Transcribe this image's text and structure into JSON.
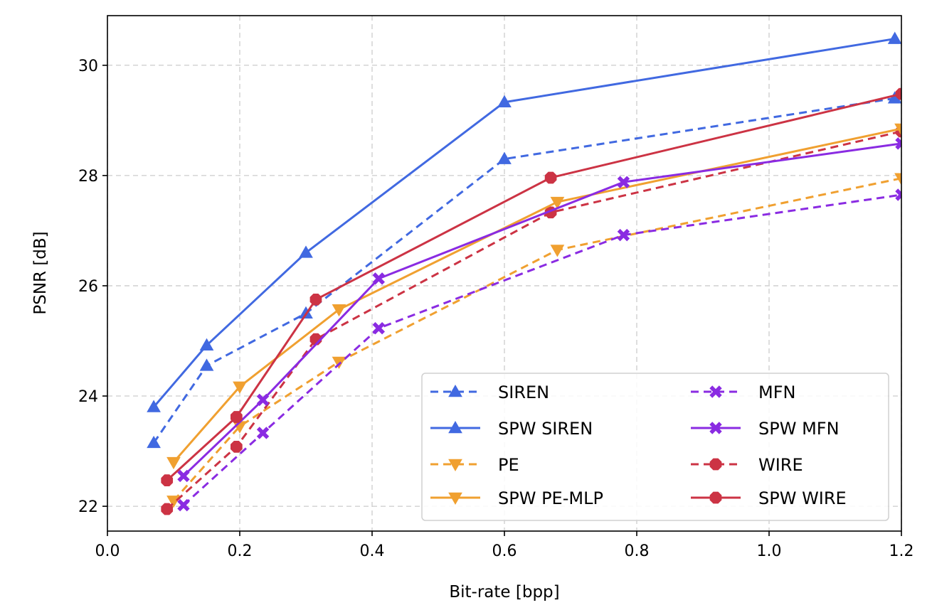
{
  "chart_data": {
    "type": "line",
    "xlabel": "Bit-rate [bpp]",
    "ylabel": "PSNR [dB]",
    "xlim": [
      0.0,
      1.2
    ],
    "ylim": [
      21.55,
      30.9
    ],
    "xticks": [
      0.0,
      0.2,
      0.4,
      0.6,
      0.8,
      1.0,
      1.2
    ],
    "xtick_labels": [
      "0.0",
      "0.2",
      "0.4",
      "0.6",
      "0.8",
      "1.0",
      "1.2"
    ],
    "yticks": [
      22,
      24,
      26,
      28,
      30
    ],
    "ytick_labels": [
      "22",
      "24",
      "26",
      "28",
      "30"
    ],
    "grid": true,
    "legend_position": "lower-right",
    "legend_columns": 2,
    "series": [
      {
        "name": "SIREN",
        "color": "#4169E1",
        "style": "dashed",
        "marker": "triangle-up",
        "x": [
          0.07,
          0.15,
          0.3,
          0.6,
          1.19
        ],
        "y": [
          23.15,
          24.55,
          25.5,
          28.3,
          29.4
        ]
      },
      {
        "name": "SPW SIREN",
        "color": "#4169E1",
        "style": "solid",
        "marker": "triangle-up",
        "x": [
          0.07,
          0.15,
          0.3,
          0.6,
          1.19
        ],
        "y": [
          23.8,
          24.92,
          26.6,
          29.33,
          30.48
        ]
      },
      {
        "name": "PE",
        "color": "#F0A030",
        "style": "dashed",
        "marker": "triangle-down",
        "x": [
          0.1,
          0.2,
          0.35,
          0.68,
          1.2
        ],
        "y": [
          22.1,
          23.45,
          24.62,
          26.65,
          27.95
        ]
      },
      {
        "name": "SPW PE-MLP",
        "color": "#F0A030",
        "style": "solid",
        "marker": "triangle-down",
        "x": [
          0.1,
          0.2,
          0.35,
          0.68,
          1.2
        ],
        "y": [
          22.8,
          24.17,
          25.57,
          27.52,
          28.85
        ]
      },
      {
        "name": "MFN",
        "color": "#8A2BE2",
        "style": "dashed",
        "marker": "x-filled",
        "x": [
          0.115,
          0.235,
          0.41,
          0.78,
          1.2
        ],
        "y": [
          22.02,
          23.33,
          25.23,
          26.92,
          27.65
        ]
      },
      {
        "name": "SPW MFN",
        "color": "#8A2BE2",
        "style": "solid",
        "marker": "x-filled",
        "x": [
          0.115,
          0.235,
          0.41,
          0.78,
          1.2
        ],
        "y": [
          22.55,
          23.93,
          26.13,
          27.88,
          28.58
        ]
      },
      {
        "name": "WIRE",
        "color": "#CC3344",
        "style": "dashed",
        "marker": "octagon",
        "x": [
          0.09,
          0.195,
          0.315,
          0.67,
          1.2
        ],
        "y": [
          21.95,
          23.08,
          25.03,
          27.33,
          28.8
        ]
      },
      {
        "name": "SPW WIRE",
        "color": "#CC3344",
        "style": "solid",
        "marker": "octagon",
        "x": [
          0.09,
          0.195,
          0.315,
          0.67,
          1.2
        ],
        "y": [
          22.47,
          23.62,
          25.75,
          27.96,
          29.48
        ]
      }
    ]
  }
}
